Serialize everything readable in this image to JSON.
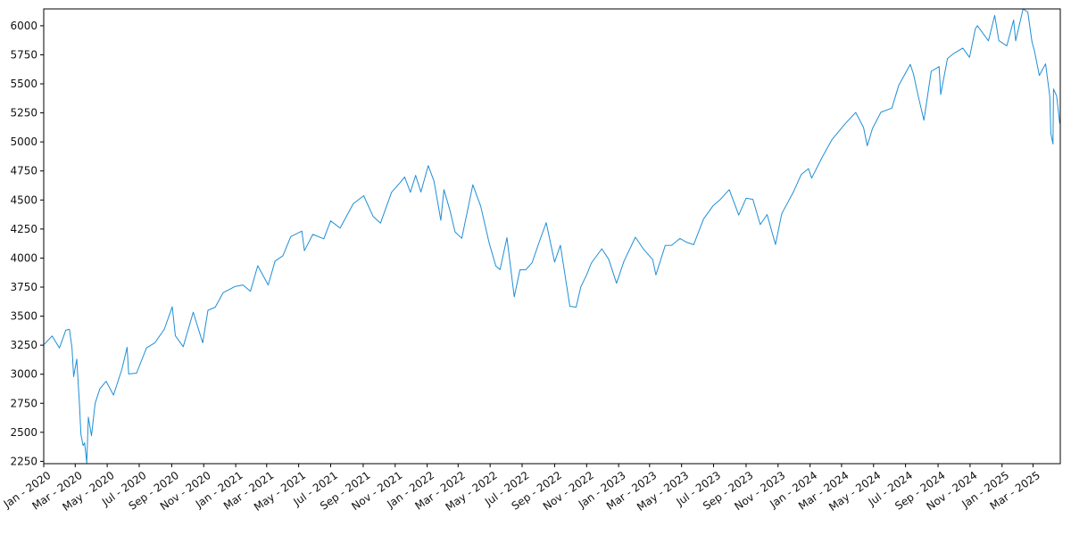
{
  "chart_data": {
    "type": "line",
    "title": "",
    "xlabel": "",
    "ylabel": "",
    "grid": false,
    "legend": "none",
    "line_color": "#1f8fd6",
    "xlim": [
      "2020-01-01",
      "2025-04-22"
    ],
    "ylim": [
      2230,
      6145
    ],
    "y_ticks": [
      2250,
      2500,
      2750,
      3000,
      3250,
      3500,
      3750,
      4000,
      4250,
      4500,
      4750,
      5000,
      5250,
      5500,
      5750,
      6000
    ],
    "x_ticks": [
      {
        "date": "2020-01-01",
        "label": "Jan - 2020"
      },
      {
        "date": "2020-03-01",
        "label": "Mar - 2020"
      },
      {
        "date": "2020-05-01",
        "label": "May - 2020"
      },
      {
        "date": "2020-07-01",
        "label": "Jul - 2020"
      },
      {
        "date": "2020-09-01",
        "label": "Sep - 2020"
      },
      {
        "date": "2020-11-01",
        "label": "Nov - 2020"
      },
      {
        "date": "2021-01-01",
        "label": "Jan - 2021"
      },
      {
        "date": "2021-03-01",
        "label": "Mar - 2021"
      },
      {
        "date": "2021-05-01",
        "label": "May - 2021"
      },
      {
        "date": "2021-07-01",
        "label": "Jul - 2021"
      },
      {
        "date": "2021-09-01",
        "label": "Sep - 2021"
      },
      {
        "date": "2021-11-01",
        "label": "Nov - 2021"
      },
      {
        "date": "2022-01-01",
        "label": "Jan - 2022"
      },
      {
        "date": "2022-03-01",
        "label": "Mar - 2022"
      },
      {
        "date": "2022-05-01",
        "label": "May - 2022"
      },
      {
        "date": "2022-07-01",
        "label": "Jul - 2022"
      },
      {
        "date": "2022-09-01",
        "label": "Sep - 2022"
      },
      {
        "date": "2022-11-01",
        "label": "Nov - 2022"
      },
      {
        "date": "2023-01-01",
        "label": "Jan - 2023"
      },
      {
        "date": "2023-03-01",
        "label": "Mar - 2023"
      },
      {
        "date": "2023-05-01",
        "label": "May - 2023"
      },
      {
        "date": "2023-07-01",
        "label": "Jul - 2023"
      },
      {
        "date": "2023-09-01",
        "label": "Sep - 2023"
      },
      {
        "date": "2023-11-01",
        "label": "Nov - 2023"
      },
      {
        "date": "2024-01-01",
        "label": "Jan - 2024"
      },
      {
        "date": "2024-03-01",
        "label": "Mar - 2024"
      },
      {
        "date": "2024-05-01",
        "label": "May - 2024"
      },
      {
        "date": "2024-07-01",
        "label": "Jul - 2024"
      },
      {
        "date": "2024-09-01",
        "label": "Sep - 2024"
      },
      {
        "date": "2024-11-01",
        "label": "Nov - 2024"
      },
      {
        "date": "2025-01-01",
        "label": "Jan - 2025"
      },
      {
        "date": "2025-03-01",
        "label": "Mar - 2025"
      }
    ],
    "series": [
      {
        "x": [
          "2020-01-02",
          "2020-01-17",
          "2020-01-31",
          "2020-02-12",
          "2020-02-19",
          "2020-02-24",
          "2020-02-27",
          "2020-03-04",
          "2020-03-09",
          "2020-03-12",
          "2020-03-16",
          "2020-03-19",
          "2020-03-23",
          "2020-03-26",
          "2020-04-01",
          "2020-04-08",
          "2020-04-17",
          "2020-04-29",
          "2020-05-13",
          "2020-05-29",
          "2020-06-08",
          "2020-06-11",
          "2020-06-26",
          "2020-07-15",
          "2020-07-31",
          "2020-08-18",
          "2020-09-02",
          "2020-09-08",
          "2020-09-23",
          "2020-10-12",
          "2020-10-30",
          "2020-11-09",
          "2020-11-23",
          "2020-12-08",
          "2020-12-31",
          "2021-01-15",
          "2021-01-29",
          "2021-02-12",
          "2021-03-04",
          "2021-03-17",
          "2021-04-01",
          "2021-04-16",
          "2021-05-07",
          "2021-05-12",
          "2021-05-28",
          "2021-06-18",
          "2021-07-01",
          "2021-07-19",
          "2021-08-13",
          "2021-09-02",
          "2021-09-20",
          "2021-10-04",
          "2021-10-25",
          "2021-11-10",
          "2021-11-19",
          "2021-11-30",
          "2021-12-10",
          "2021-12-20",
          "2022-01-03",
          "2022-01-14",
          "2022-01-27",
          "2022-02-02",
          "2022-02-14",
          "2022-02-23",
          "2022-03-08",
          "2022-03-29",
          "2022-04-13",
          "2022-04-29",
          "2022-05-12",
          "2022-05-20",
          "2022-06-02",
          "2022-06-16",
          "2022-06-27",
          "2022-07-08",
          "2022-07-20",
          "2022-08-01",
          "2022-08-16",
          "2022-09-01",
          "2022-09-12",
          "2022-09-30",
          "2022-10-12",
          "2022-10-21",
          "2022-11-01",
          "2022-11-10",
          "2022-11-30",
          "2022-12-13",
          "2022-12-28",
          "2023-01-11",
          "2023-02-02",
          "2023-02-17",
          "2023-03-07",
          "2023-03-13",
          "2023-03-31",
          "2023-04-12",
          "2023-04-28",
          "2023-05-10",
          "2023-05-24",
          "2023-06-12",
          "2023-06-30",
          "2023-07-14",
          "2023-07-31",
          "2023-08-08",
          "2023-08-18",
          "2023-09-01",
          "2023-09-14",
          "2023-09-28",
          "2023-10-11",
          "2023-10-27",
          "2023-11-08",
          "2023-11-30",
          "2023-12-15",
          "2023-12-29",
          "2024-01-04",
          "2024-01-24",
          "2024-02-12",
          "2024-03-08",
          "2024-03-28",
          "2024-04-12",
          "2024-04-19",
          "2024-04-29",
          "2024-05-15",
          "2024-06-05",
          "2024-06-18",
          "2024-07-10",
          "2024-07-16",
          "2024-07-25",
          "2024-08-05",
          "2024-08-19",
          "2024-09-03",
          "2024-09-06",
          "2024-09-19",
          "2024-10-01",
          "2024-10-18",
          "2024-10-31",
          "2024-11-11",
          "2024-11-15",
          "2024-12-06",
          "2024-12-18",
          "2024-12-26",
          "2025-01-10",
          "2025-01-23",
          "2025-01-27",
          "2025-02-10",
          "2025-02-19",
          "2025-02-27",
          "2025-03-04",
          "2025-03-13",
          "2025-03-25",
          "2025-04-02",
          "2025-04-04",
          "2025-04-08",
          "2025-04-09",
          "2025-04-15",
          "2025-04-21"
        ],
        "y": [
          3258,
          3329,
          3226,
          3379,
          3386,
          3225,
          2979,
          3130,
          2746,
          2480,
          2386,
          2409,
          2237,
          2630,
          2470,
          2750,
          2875,
          2939,
          2820,
          3044,
          3232,
          3002,
          3009,
          3227,
          3271,
          3389,
          3580,
          3331,
          3237,
          3534,
          3270,
          3550,
          3577,
          3702,
          3756,
          3768,
          3714,
          3934,
          3768,
          3974,
          4020,
          4185,
          4232,
          4063,
          4204,
          4166,
          4320,
          4258,
          4468,
          4537,
          4358,
          4300,
          4566,
          4647,
          4698,
          4567,
          4712,
          4568,
          4796,
          4662,
          4326,
          4589,
          4401,
          4226,
          4170,
          4631,
          4446,
          4132,
          3930,
          3901,
          4176,
          3666,
          3900,
          3899,
          3960,
          4118,
          4305,
          3966,
          4110,
          3585,
          3577,
          3752,
          3856,
          3957,
          4080,
          3990,
          3783,
          3970,
          4180,
          4079,
          3986,
          3855,
          4109,
          4110,
          4169,
          4137,
          4115,
          4338,
          4450,
          4505,
          4589,
          4490,
          4370,
          4515,
          4505,
          4288,
          4375,
          4117,
          4382,
          4568,
          4719,
          4770,
          4688,
          4868,
          5021,
          5157,
          5254,
          5123,
          4967,
          5116,
          5255,
          5291,
          5487,
          5667,
          5588,
          5399,
          5186,
          5608,
          5648,
          5408,
          5718,
          5762,
          5808,
          5728,
          5973,
          6001,
          5870,
          6090,
          5872,
          5827,
          6049,
          5870,
          6144,
          6118,
          5861,
          5778,
          5572,
          5672,
          5396,
          5074,
          4982,
          5456,
          5396,
          5158
        ]
      }
    ]
  }
}
